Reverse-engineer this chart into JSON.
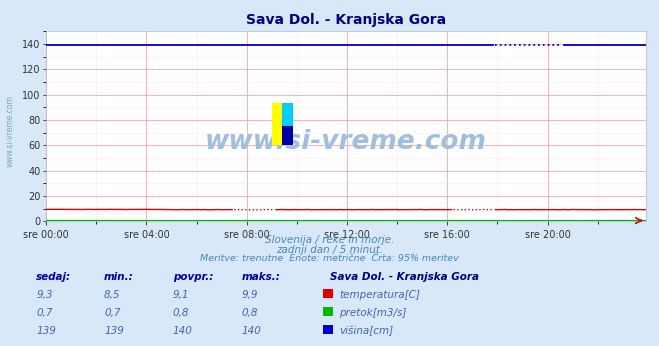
{
  "title": "Sava Dol. - Kranjska Gora",
  "title_color": "#000080",
  "background_color": "#d8e8f8",
  "plot_bg_color": "#ffffff",
  "grid_major_color": "#ff9999",
  "grid_minor_color": "#ffdddd",
  "xlabel_ticks": [
    "sre 00:00",
    "sre 04:00",
    "sre 08:00",
    "sre 12:00",
    "sre 16:00",
    "sre 20:00"
  ],
  "xtick_pos": [
    0,
    48,
    96,
    144,
    192,
    240
  ],
  "ylabel_values": [
    0,
    20,
    40,
    60,
    80,
    100,
    120,
    140
  ],
  "ymin": 0,
  "ymax": 150,
  "xmin": 0,
  "xmax": 287,
  "watermark_text": "www.si-vreme.com",
  "watermark_color": "#9fbfdf",
  "sub_text1": "Slovenija / reke in morje.",
  "sub_text2": "zadnji dan / 5 minut.",
  "sub_text3": "Meritve: trenutne  Enote: metrične  Črta: 95% meritev",
  "sub_text_color": "#4488bb",
  "legend_title": "Sava Dol. - Kranjska Gora",
  "legend_title_color": "#000080",
  "legend_items": [
    {
      "label": "temperatura[C]",
      "color": "#dd0000"
    },
    {
      "label": "pretok[m3/s]",
      "color": "#00bb00"
    },
    {
      "label": "višina[cm]",
      "color": "#0000cc"
    }
  ],
  "table_headers": [
    "sedaj:",
    "min.:",
    "povpr.:",
    "maks.:"
  ],
  "table_data": [
    [
      "9,3",
      "8,5",
      "9,1",
      "9,9"
    ],
    [
      "0,7",
      "0,7",
      "0,8",
      "0,8"
    ],
    [
      "139",
      "139",
      "140",
      "140"
    ]
  ],
  "n_points": 288,
  "temp_base": 9.3,
  "pretok_base": 0.7,
  "visina_base": 139,
  "sidebar_text": "www.si-vreme.com",
  "sidebar_color": "#6699bb",
  "logo_yellow": "#ffff00",
  "logo_cyan": "#00ccff",
  "logo_blue": "#0000aa",
  "line_color_temp": "#dd0000",
  "line_color_pretok": "#00bb00",
  "line_color_visina": "#0000cc"
}
